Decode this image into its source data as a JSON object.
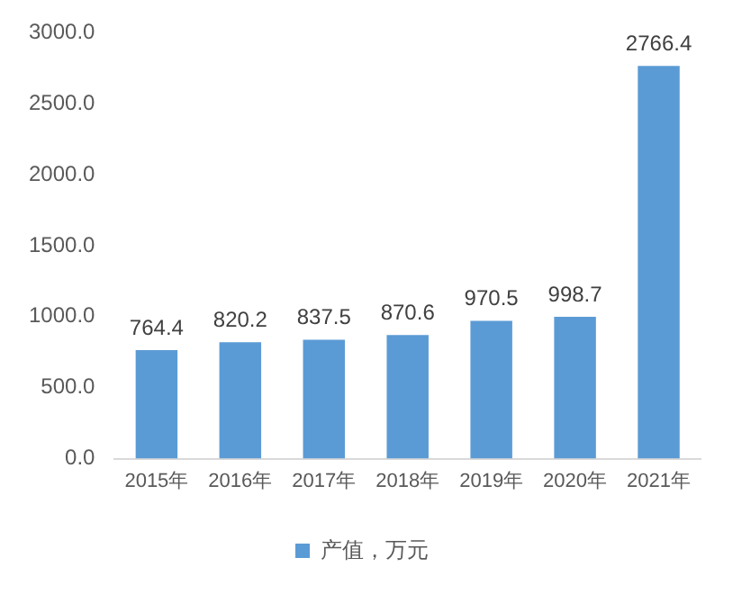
{
  "chart_data": {
    "type": "bar",
    "categories": [
      "2015年",
      "2016年",
      "2017年",
      "2018年",
      "2019年",
      "2020年",
      "2021年"
    ],
    "series": [
      {
        "name": "产值，万元",
        "color": "#5b9bd5",
        "values": [
          764.4,
          820.2,
          837.5,
          870.6,
          970.5,
          998.7,
          2766.4
        ]
      }
    ],
    "ylim": [
      0,
      3000
    ],
    "yticks": [
      {
        "value": 0,
        "label": "0.0"
      },
      {
        "value": 500,
        "label": "500.0"
      },
      {
        "value": 1000,
        "label": "1000.0"
      },
      {
        "value": 1500,
        "label": "1500.0"
      },
      {
        "value": 2000,
        "label": "2000.0"
      },
      {
        "value": 2500,
        "label": "2500.0"
      },
      {
        "value": 3000,
        "label": "3000.0"
      }
    ],
    "grid": false,
    "legend": "bottom",
    "data_labels": true
  }
}
